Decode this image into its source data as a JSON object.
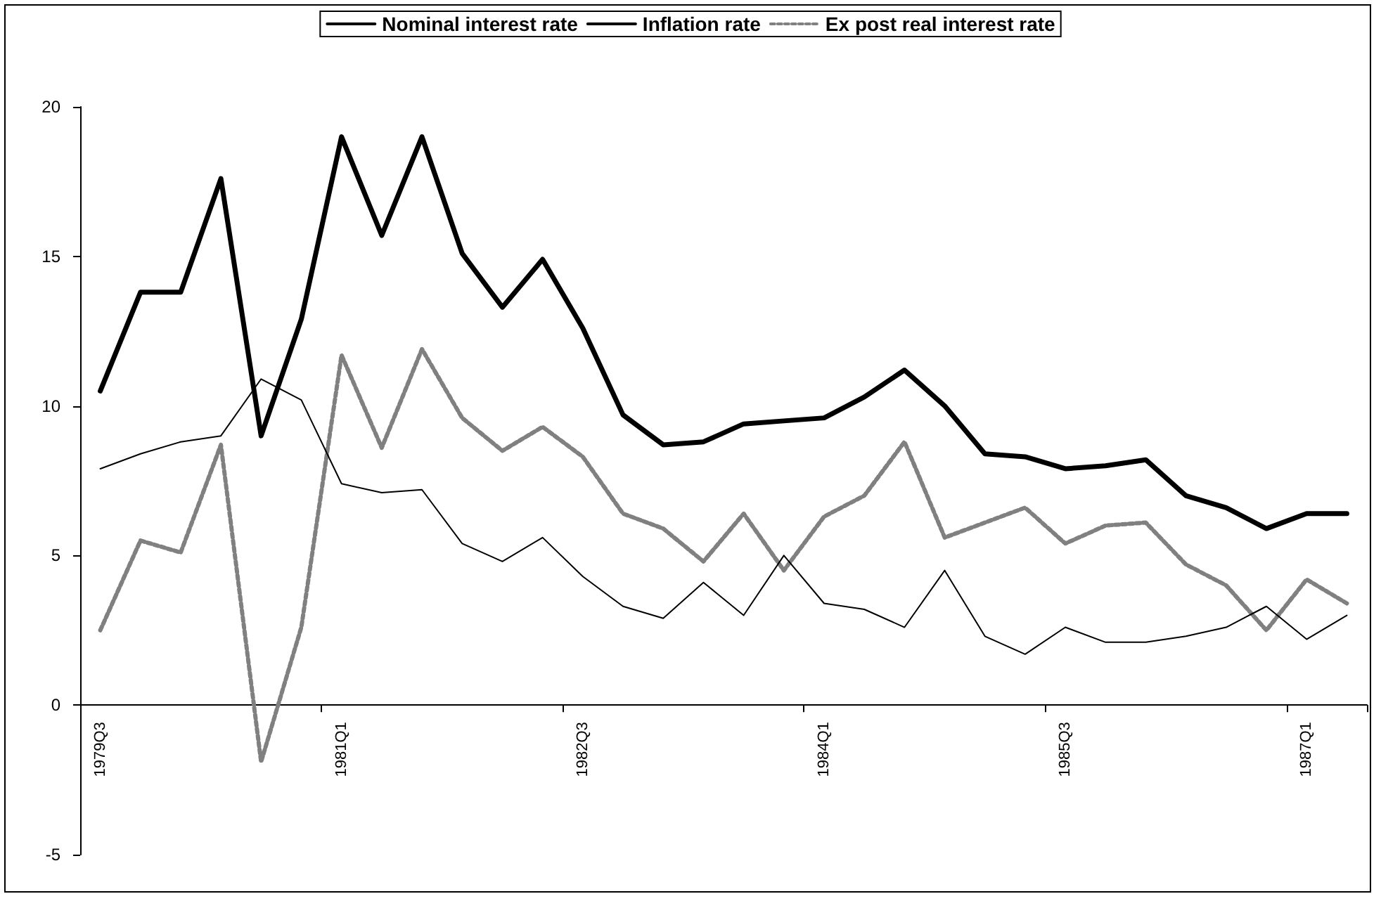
{
  "chart_data": {
    "type": "line",
    "categories": [
      "1979Q3",
      null,
      null,
      null,
      null,
      null,
      "1981Q1",
      null,
      null,
      null,
      null,
      null,
      "1982Q3",
      null,
      null,
      null,
      null,
      null,
      "1984Q1",
      null,
      null,
      null,
      null,
      null,
      "1985Q3",
      null,
      null,
      null,
      null,
      null,
      "1987Q1",
      null
    ],
    "series": [
      {
        "name": "Nominal interest rate",
        "color": "#000000",
        "line_style": "solid",
        "values": [
          10.5,
          13.8,
          13.8,
          17.6,
          9.0,
          12.9,
          19.0,
          15.7,
          19.0,
          15.1,
          13.3,
          14.9,
          12.6,
          9.7,
          8.7,
          8.8,
          9.4,
          9.5,
          9.6,
          10.3,
          11.2,
          10.0,
          8.4,
          8.3,
          7.9,
          8.0,
          8.2,
          7.0,
          6.6,
          5.9,
          6.4,
          6.4
        ]
      },
      {
        "name": "Inflation rate",
        "color": "#000000",
        "line_style": "solid",
        "values": [
          7.9,
          8.4,
          8.8,
          9.0,
          10.9,
          10.2,
          7.4,
          7.1,
          7.2,
          5.4,
          4.8,
          5.6,
          4.3,
          3.3,
          2.9,
          4.1,
          3.0,
          5.0,
          3.4,
          3.2,
          2.6,
          4.5,
          2.3,
          1.7,
          2.6,
          2.1,
          2.1,
          2.3,
          2.6,
          3.3,
          2.2,
          3.0
        ]
      },
      {
        "name": "Ex post real interest rate",
        "color": "#808080",
        "line_style": "dotted",
        "values": [
          2.5,
          5.5,
          5.1,
          8.7,
          -1.9,
          2.6,
          11.7,
          8.6,
          11.9,
          9.6,
          8.5,
          9.3,
          8.3,
          6.4,
          5.9,
          4.8,
          6.4,
          4.5,
          6.3,
          7.0,
          8.8,
          5.6,
          6.1,
          6.6,
          5.4,
          6.0,
          6.1,
          4.7,
          4.0,
          2.5,
          4.2,
          3.4
        ]
      }
    ],
    "ylim": [
      -5,
      20
    ],
    "yticks": [
      -5,
      0,
      5,
      10,
      15,
      20
    ],
    "grid": false,
    "legend": "top",
    "marker": "none"
  }
}
